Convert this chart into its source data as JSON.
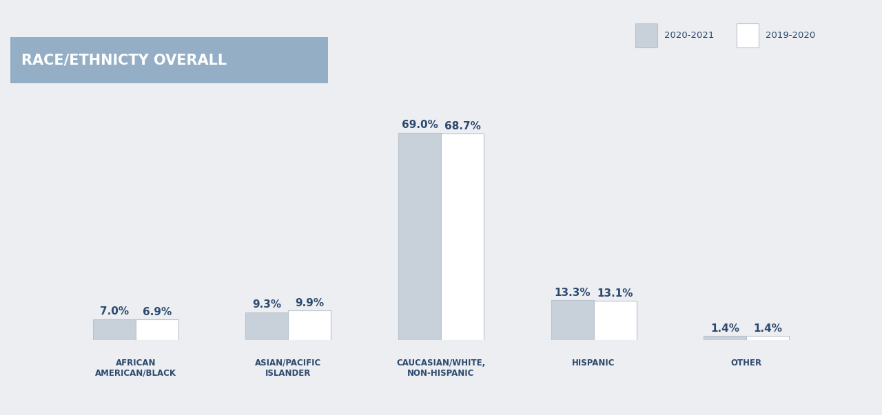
{
  "categories": [
    "AFRICAN\nAMERICAN/BLACK",
    "ASIAN/PACIFIC\nISLANDER",
    "CAUCASIAN/WHITE,\nNON-HISPANIC",
    "HISPANIC",
    "OTHER"
  ],
  "values_2020_2021": [
    7.0,
    9.3,
    69.0,
    13.3,
    1.4
  ],
  "values_2019_2020": [
    6.9,
    9.9,
    68.7,
    13.1,
    1.4
  ],
  "color_2020_2021": "#c8d0da",
  "color_2019_2020": "#ffffff",
  "bar_edge_color_2020_2021": "#b8c2cc",
  "bar_edge_color_2019_2020": "#b8c2cc",
  "title": "RACE/ETHNICTY OVERALL",
  "title_bg_color": "#94afc5",
  "title_text_color": "#ffffff",
  "label_color": "#2d4a6e",
  "legend_label_2020_2021": "2020-2021",
  "legend_label_2019_2020": "2019-2020",
  "background_color": "#eceef2",
  "value_label_fontsize": 11,
  "category_fontsize": 8.5,
  "bar_width": 0.28,
  "ylim": [
    0,
    80
  ]
}
